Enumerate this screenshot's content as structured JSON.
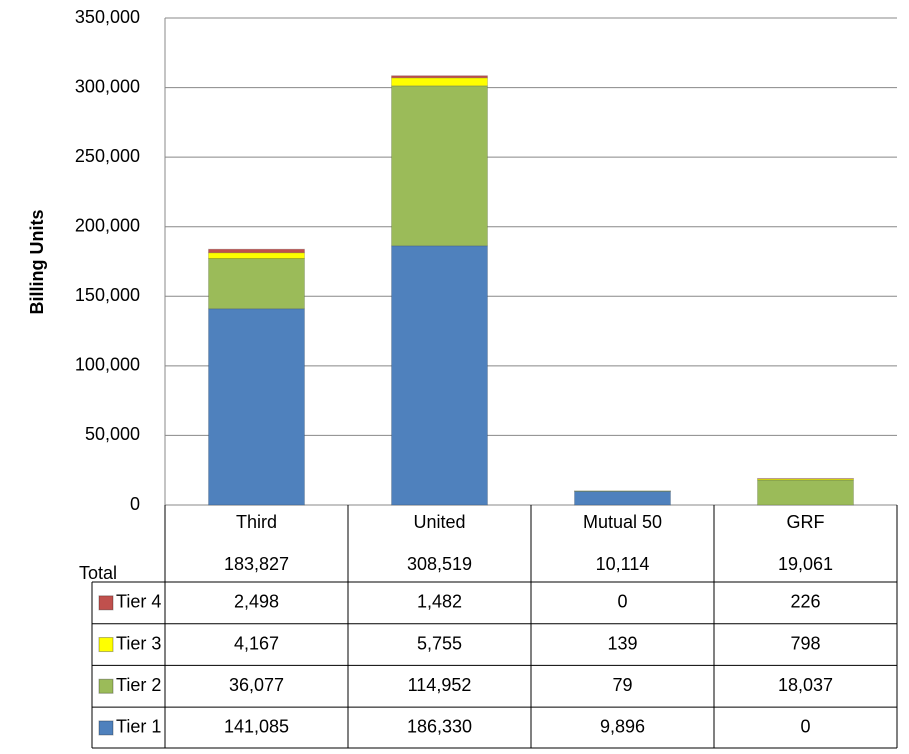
{
  "chart_data": {
    "type": "stacked_bar",
    "y_label": "Billing Units",
    "categories": [
      "Third",
      "United",
      "Mutual 50",
      "GRF"
    ],
    "series": [
      {
        "name": "Tier 1",
        "color": "#4f81bd",
        "values": [
          141085,
          186330,
          9896,
          0
        ],
        "value_labels": [
          "141,085",
          "186,330",
          "9,896",
          "0"
        ]
      },
      {
        "name": "Tier 2",
        "color": "#9bbb59",
        "values": [
          36077,
          114952,
          79,
          18037
        ],
        "value_labels": [
          "36,077",
          "114,952",
          "79",
          "18,037"
        ]
      },
      {
        "name": "Tier 3",
        "color": "#ffff00",
        "values": [
          4167,
          5755,
          139,
          798
        ],
        "value_labels": [
          "4,167",
          "5,755",
          "139",
          "798"
        ]
      },
      {
        "name": "Tier 4",
        "color": "#c0504d",
        "values": [
          2498,
          1482,
          0,
          226
        ],
        "value_labels": [
          "2,498",
          "1,482",
          "0",
          "226"
        ]
      }
    ],
    "totals": {
      "name": "Total",
      "values": [
        183827,
        308519,
        10114,
        19061
      ],
      "value_labels": [
        "183,827",
        "308,519",
        "10,114",
        "19,061"
      ]
    },
    "ylim": [
      0,
      350000
    ],
    "yticks": [
      0,
      {
        "value": 50000,
        "label": "50,000"
      },
      {
        "value": 100000,
        "label": "100,000"
      },
      {
        "value": 150000,
        "label": "150,000"
      },
      {
        "value": 200000,
        "label": "200,000"
      },
      {
        "value": 250000,
        "label": "250,000"
      },
      {
        "value": 300000,
        "label": "300,000"
      },
      {
        "value": 350000,
        "label": "350,000"
      }
    ],
    "grid": true
  }
}
